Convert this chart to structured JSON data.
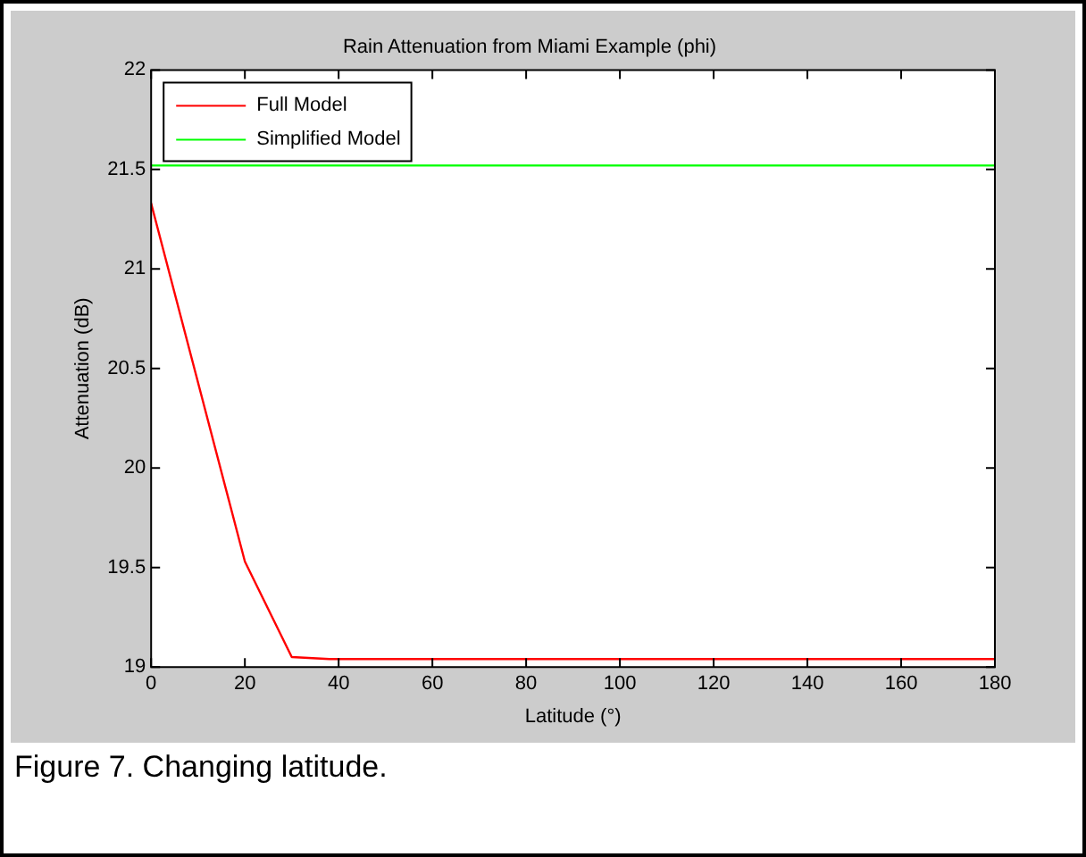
{
  "chart_data": {
    "type": "line",
    "title": "Rain Attenuation from Miami Example (phi)",
    "xlabel": "Latitude (°)",
    "ylabel": "Attenuation (dB)",
    "series": [
      {
        "name": "Full Model",
        "color": "#ff0000",
        "x": [
          0,
          20,
          30,
          38,
          180
        ],
        "values": [
          21.33,
          19.53,
          19.05,
          19.04,
          19.04
        ]
      },
      {
        "name": "Simplified Model",
        "color": "#00ff00",
        "x": [
          0,
          180
        ],
        "values": [
          21.52,
          21.52
        ]
      }
    ],
    "xlim": [
      0,
      180
    ],
    "xticks": [
      0,
      20,
      40,
      60,
      80,
      100,
      120,
      140,
      160,
      180
    ],
    "ylim": [
      19,
      22
    ],
    "yticks": [
      19,
      19.5,
      20,
      20.5,
      21,
      21.5,
      22
    ],
    "grid": false,
    "legend": "top left",
    "marker": "none",
    "line_style": "solid",
    "annotations": [
      "Figure 7. Changing latitude."
    ]
  }
}
